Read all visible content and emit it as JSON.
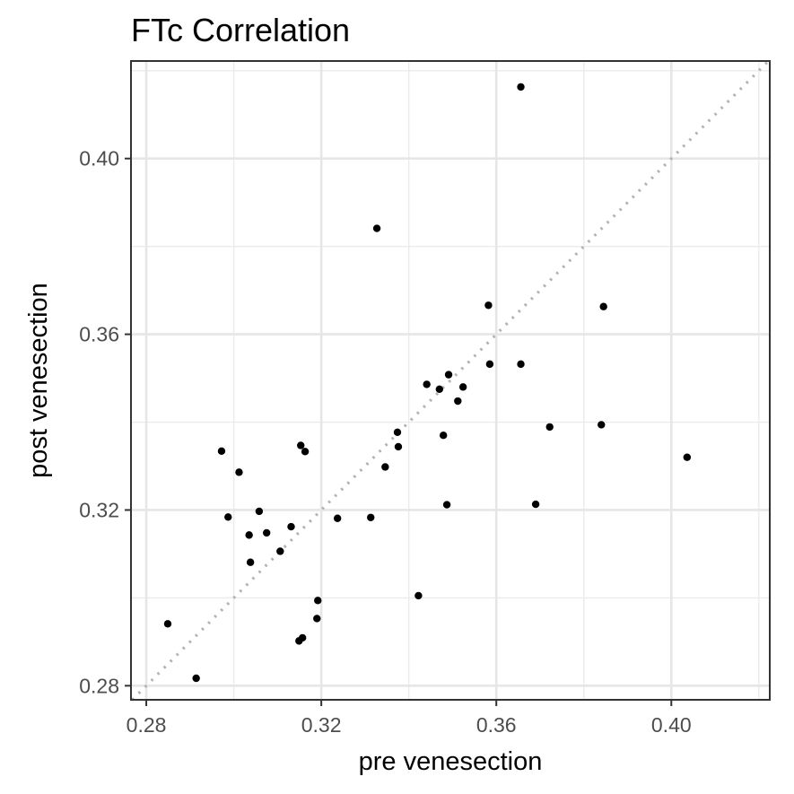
{
  "chart_data": {
    "type": "scatter",
    "title": "FTc   Correlation",
    "xlabel": "pre venesection",
    "ylabel": "post venesection",
    "xlim": [
      0.2765,
      0.4225
    ],
    "ylim": [
      0.2768,
      0.4222
    ],
    "x_ticks": [
      0.28,
      0.32,
      0.36,
      0.4
    ],
    "y_ticks": [
      0.28,
      0.32,
      0.36,
      0.4
    ],
    "x_tick_labels": [
      "0.28",
      "0.32",
      "0.36",
      "0.40"
    ],
    "y_tick_labels": [
      "0.28",
      "0.32",
      "0.36",
      "0.40"
    ],
    "grid": true,
    "reference_line": {
      "slope": 1,
      "intercept": 0,
      "style": "dotted",
      "color": "#b3b3b3"
    },
    "point_color": "#000000",
    "points": [
      {
        "x": 0.3656,
        "y": 0.4163
      },
      {
        "x": 0.3327,
        "y": 0.3841
      },
      {
        "x": 0.3582,
        "y": 0.3666
      },
      {
        "x": 0.3845,
        "y": 0.3663
      },
      {
        "x": 0.3585,
        "y": 0.3532
      },
      {
        "x": 0.3656,
        "y": 0.3532
      },
      {
        "x": 0.3491,
        "y": 0.3508
      },
      {
        "x": 0.3441,
        "y": 0.3486
      },
      {
        "x": 0.3524,
        "y": 0.348
      },
      {
        "x": 0.347,
        "y": 0.3475
      },
      {
        "x": 0.3512,
        "y": 0.3448
      },
      {
        "x": 0.3722,
        "y": 0.3389
      },
      {
        "x": 0.384,
        "y": 0.3394
      },
      {
        "x": 0.3374,
        "y": 0.3377
      },
      {
        "x": 0.3479,
        "y": 0.337
      },
      {
        "x": 0.3376,
        "y": 0.3344
      },
      {
        "x": 0.3153,
        "y": 0.3347
      },
      {
        "x": 0.3163,
        "y": 0.3333
      },
      {
        "x": 0.2972,
        "y": 0.3334
      },
      {
        "x": 0.4036,
        "y": 0.332
      },
      {
        "x": 0.3346,
        "y": 0.3298
      },
      {
        "x": 0.3012,
        "y": 0.3286
      },
      {
        "x": 0.3487,
        "y": 0.3212
      },
      {
        "x": 0.369,
        "y": 0.3213
      },
      {
        "x": 0.3058,
        "y": 0.3197
      },
      {
        "x": 0.2987,
        "y": 0.3184
      },
      {
        "x": 0.3237,
        "y": 0.3181
      },
      {
        "x": 0.3313,
        "y": 0.3183
      },
      {
        "x": 0.3131,
        "y": 0.3162
      },
      {
        "x": 0.3075,
        "y": 0.3148
      },
      {
        "x": 0.3035,
        "y": 0.3143
      },
      {
        "x": 0.3106,
        "y": 0.3106
      },
      {
        "x": 0.3038,
        "y": 0.3081
      },
      {
        "x": 0.3422,
        "y": 0.3005
      },
      {
        "x": 0.3192,
        "y": 0.2994
      },
      {
        "x": 0.319,
        "y": 0.2953
      },
      {
        "x": 0.2849,
        "y": 0.2941
      },
      {
        "x": 0.3157,
        "y": 0.2909
      },
      {
        "x": 0.3149,
        "y": 0.2902
      },
      {
        "x": 0.2914,
        "y": 0.2817
      }
    ]
  }
}
